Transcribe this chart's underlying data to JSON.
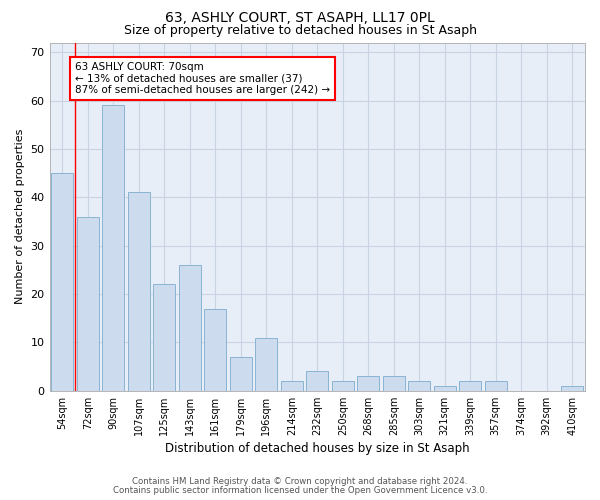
{
  "title1": "63, ASHLY COURT, ST ASAPH, LL17 0PL",
  "title2": "Size of property relative to detached houses in St Asaph",
  "xlabel": "Distribution of detached houses by size in St Asaph",
  "ylabel": "Number of detached properties",
  "categories": [
    "54sqm",
    "72sqm",
    "90sqm",
    "107sqm",
    "125sqm",
    "143sqm",
    "161sqm",
    "179sqm",
    "196sqm",
    "214sqm",
    "232sqm",
    "250sqm",
    "268sqm",
    "285sqm",
    "303sqm",
    "321sqm",
    "339sqm",
    "357sqm",
    "374sqm",
    "392sqm",
    "410sqm"
  ],
  "values": [
    45,
    36,
    59,
    41,
    22,
    26,
    17,
    7,
    11,
    2,
    4,
    2,
    3,
    3,
    2,
    1,
    2,
    2,
    0,
    0,
    1
  ],
  "bar_color": "#ccdcee",
  "bar_edge_color": "#8ab4d4",
  "grid_color": "#c8d4e4",
  "background_color": "#e8eef8",
  "annotation_line1": "63 ASHLY COURT: 70sqm",
  "annotation_line2": "← 13% of detached houses are smaller (37)",
  "annotation_line3": "87% of semi-detached houses are larger (242) →",
  "footer1": "Contains HM Land Registry data © Crown copyright and database right 2024.",
  "footer2": "Contains public sector information licensed under the Open Government Licence v3.0.",
  "ylim": [
    0,
    72
  ],
  "yticks": [
    0,
    10,
    20,
    30,
    40,
    50,
    60,
    70
  ],
  "redline_xindex": 1,
  "title1_fontsize": 10,
  "title2_fontsize": 9
}
